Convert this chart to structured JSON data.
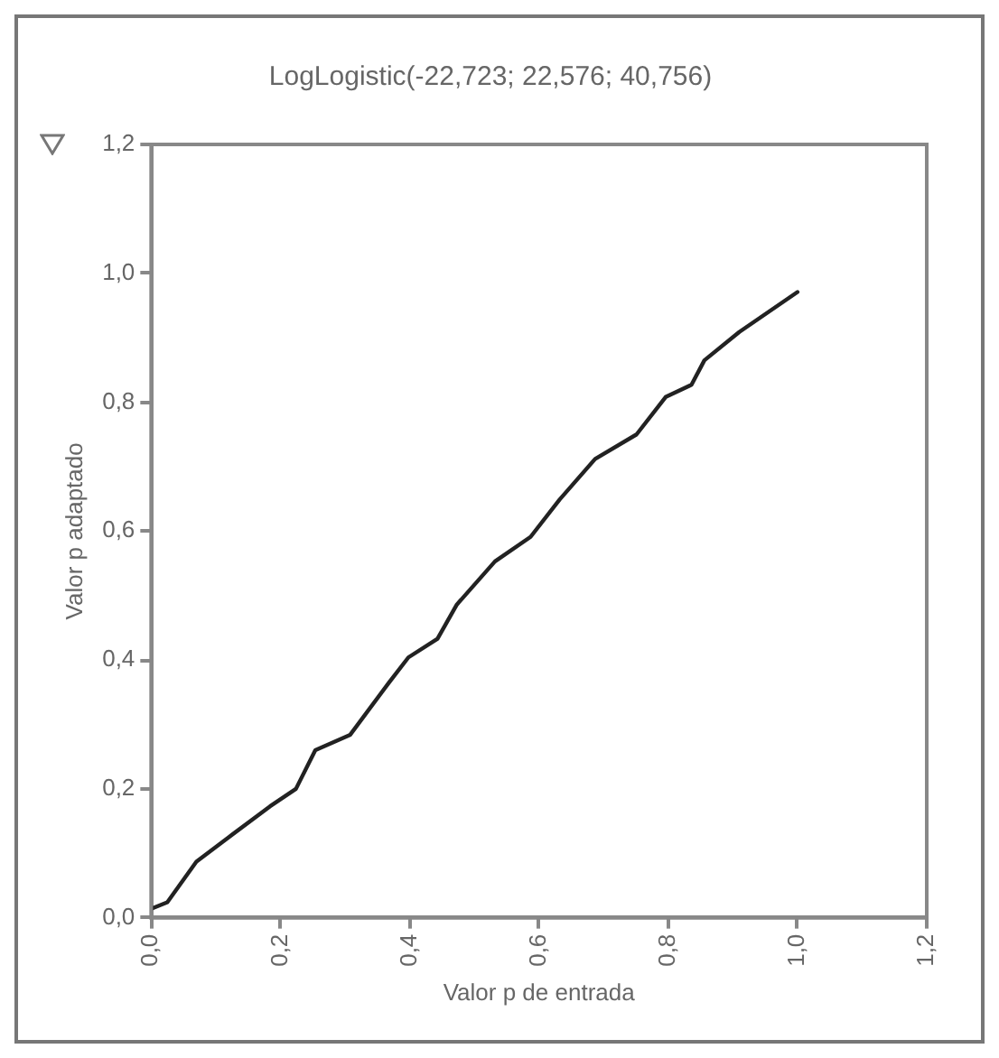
{
  "chart_data": {
    "type": "line",
    "title": "LogLogistic(-22,723; 22,576; 40,756)",
    "xlabel": "Valor p de entrada",
    "ylabel": "Valor p adaptado",
    "x": [
      0,
      0.025,
      0.07,
      0.12,
      0.184,
      0.224,
      0.254,
      0.308,
      0.368,
      0.398,
      0.443,
      0.473,
      0.532,
      0.587,
      0.632,
      0.687,
      0.751,
      0.796,
      0.836,
      0.856,
      0.91,
      1.0
    ],
    "series": [
      {
        "color": "#222222",
        "values": [
          0.014,
          0.024,
          0.087,
          0.125,
          0.173,
          0.2,
          0.26,
          0.284,
          0.365,
          0.404,
          0.433,
          0.486,
          0.553,
          0.591,
          0.649,
          0.712,
          0.75,
          0.808,
          0.827,
          0.865,
          0.909,
          0.971
        ]
      }
    ],
    "xlim": [
      0,
      1.2
    ],
    "ylim": [
      0,
      1.2
    ],
    "xticks": [
      {
        "value": 0,
        "label": "0,0"
      },
      {
        "value": 0.2,
        "label": "0,2"
      },
      {
        "value": 0.4,
        "label": "0,4"
      },
      {
        "value": 0.6,
        "label": "0,6"
      },
      {
        "value": 0.8,
        "label": "0,8"
      },
      {
        "value": 1,
        "label": "1,0"
      },
      {
        "value": 1.2,
        "label": "1,2"
      }
    ],
    "yticks": [
      {
        "value": 0,
        "label": "0,0"
      },
      {
        "value": 0.2,
        "label": "0,2"
      },
      {
        "value": 0.4,
        "label": "0,4"
      },
      {
        "value": 0.6,
        "label": "0,6"
      },
      {
        "value": 0.8,
        "label": "0,8"
      },
      {
        "value": 1,
        "label": "1,0"
      },
      {
        "value": 1.2,
        "label": "1,2"
      }
    ],
    "grid": false,
    "legend": false,
    "marker": "none",
    "line_style": "solid"
  }
}
